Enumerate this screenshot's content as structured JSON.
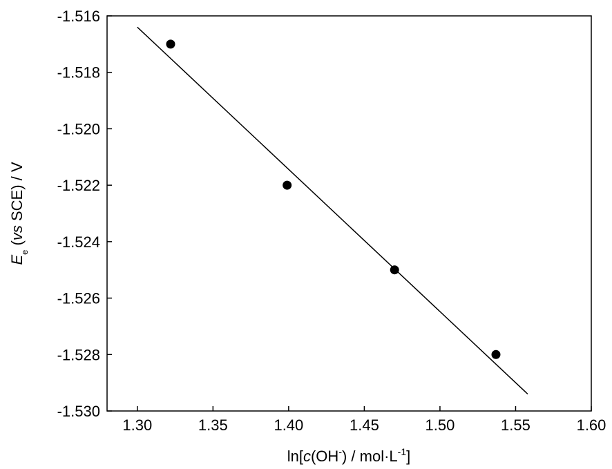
{
  "chart_data": {
    "type": "scatter",
    "x_label": [
      "ln[",
      "c",
      "(OH",
      "-",
      ") / mol·L",
      "-1",
      "]"
    ],
    "y_label": [
      "E",
      "e",
      " (",
      "vs",
      " SCE) / V"
    ],
    "x": [
      1.322,
      1.399,
      1.47,
      1.537
    ],
    "values": [
      -1.517,
      -1.522,
      -1.525,
      -1.528
    ],
    "color": "#000000",
    "fit": {
      "x": [
        1.3,
        1.558
      ],
      "y": [
        -1.5164,
        -1.5294
      ]
    },
    "xlim": [
      1.28,
      1.6
    ],
    "xticks": [
      {
        "value": 1.3,
        "label": "1.30"
      },
      1.35,
      {
        "value": 1.4,
        "label": "1.40"
      },
      1.45,
      {
        "value": 1.5,
        "label": "1.50"
      },
      1.55,
      {
        "value": 1.6,
        "label": "1.60"
      }
    ],
    "ylim": [
      -1.53,
      -1.516
    ],
    "yticks": [
      {
        "value": -1.53,
        "label": "-1.530"
      },
      -1.528,
      -1.526,
      -1.524,
      -1.522,
      {
        "value": -1.52,
        "label": "-1.520"
      },
      -1.518,
      -1.516
    ]
  }
}
